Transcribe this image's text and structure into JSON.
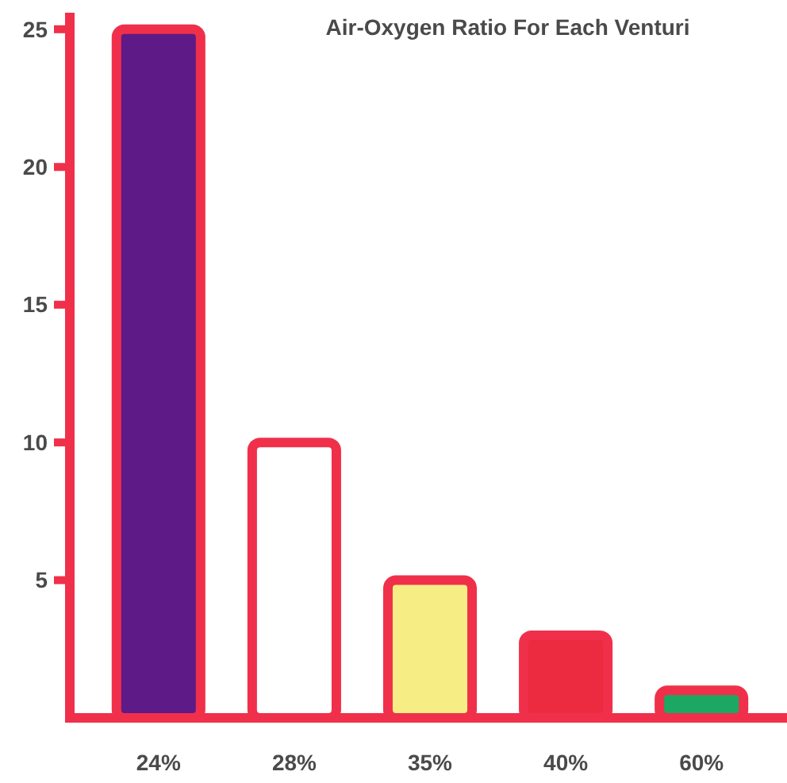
{
  "chart_data": {
    "type": "bar",
    "title": "Air-Oxygen Ratio For Each Venturi",
    "categories": [
      "24%",
      "28%",
      "35%",
      "40%",
      "60%"
    ],
    "values": [
      25,
      10,
      5,
      3,
      1
    ],
    "colors": [
      "#5e1a86",
      "#ffffff",
      "#f6ee84",
      "#ec2a40",
      "#1ca862"
    ],
    "ylim": [
      0,
      25.6
    ],
    "yticks": [
      5,
      10,
      15,
      20,
      25
    ],
    "grid": false
  }
}
